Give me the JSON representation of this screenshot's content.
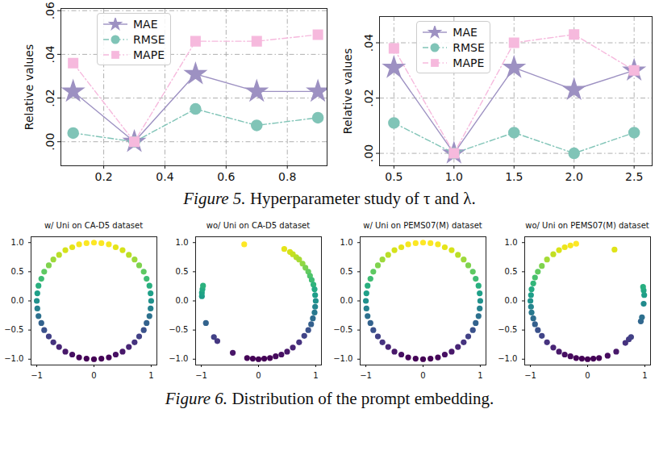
{
  "chart_data": [
    {
      "type": "line",
      "x": [
        0.1,
        0.3,
        0.5,
        0.7,
        0.9
      ],
      "xlim": [
        0.06,
        0.93
      ],
      "xticks": [
        0.2,
        0.4,
        0.6,
        0.8
      ],
      "ylabel": "Relative values",
      "ylim": [
        -0.011,
        0.061
      ],
      "yticks": [
        {
          "value": 0,
          "label": ".00"
        },
        {
          "value": 0.02,
          "label": ".02"
        },
        {
          "value": 0.04,
          "label": ".04"
        },
        {
          "value": 0.06,
          "label": ".06"
        }
      ],
      "grid": true,
      "legend": "upper center",
      "series": [
        {
          "name": "MAE",
          "color": "#9d91c2",
          "marker": "star",
          "line_style": "solid",
          "values": [
            0.023,
            0,
            0.031,
            0.023,
            0.023
          ]
        },
        {
          "name": "RMSE",
          "color": "#80c4b7",
          "marker": "circle",
          "line_style": "dashdot",
          "values": [
            0.004,
            0,
            0.015,
            0.0075,
            0.011
          ]
        },
        {
          "name": "MAPE",
          "color": "#f6b9dd",
          "marker": "square",
          "line_style": "dashdot",
          "values": [
            0.036,
            0,
            0.046,
            0.046,
            0.049
          ]
        }
      ]
    },
    {
      "type": "line",
      "x": [
        0.5,
        1.0,
        1.5,
        2.0,
        2.5
      ],
      "xlim": [
        0.38,
        2.65
      ],
      "xticks": [
        0.5,
        {
          "value": 1,
          "label": "1.0"
        },
        1.5,
        {
          "value": 2,
          "label": "2.0"
        },
        2.5
      ],
      "ylabel": "Relative values",
      "ylim": [
        -0.0045,
        0.0495
      ],
      "yticks": [
        {
          "value": 0,
          "label": ".00"
        },
        {
          "value": 0.02,
          "label": ".02"
        },
        {
          "value": 0.04,
          "label": ".04"
        }
      ],
      "grid": true,
      "legend": "upper center",
      "series": [
        {
          "name": "MAE",
          "color": "#9d91c2",
          "marker": "star",
          "line_style": "solid",
          "values": [
            0.031,
            0,
            0.031,
            0.023,
            0.03
          ]
        },
        {
          "name": "RMSE",
          "color": "#80c4b7",
          "marker": "circle",
          "line_style": "dashdot",
          "values": [
            0.011,
            0,
            0.0075,
            0,
            0.0075
          ]
        },
        {
          "name": "MAPE",
          "color": "#f6b9dd",
          "marker": "square",
          "line_style": "dashdot",
          "values": [
            0.038,
            0,
            0.04,
            0.043,
            0.03
          ]
        }
      ]
    },
    {
      "type": "scatter",
      "title": "w/ Uni on CA-D5 dataset",
      "xlim": [
        -1.1,
        1.1
      ],
      "xticks": [
        -1,
        0,
        1
      ],
      "ylim": [
        -1.1,
        1.1
      ],
      "yticks": [
        {
          "value": -1,
          "label": "−1.0"
        },
        {
          "value": -0.5,
          "label": "−0.5"
        },
        {
          "value": 0,
          "label": "0.0"
        },
        {
          "value": 0.5,
          "label": "0.5"
        },
        {
          "value": 1,
          "label": "1.0"
        }
      ],
      "x": [
        1,
        0.99,
        0.97,
        0.92,
        0.87,
        0.79,
        0.71,
        0.61,
        0.5,
        0.38,
        0.26,
        0.13,
        0,
        -0.13,
        -0.26,
        -0.38,
        -0.5,
        -0.61,
        -0.71,
        -0.79,
        -0.87,
        -0.92,
        -0.97,
        -0.99,
        -1,
        -0.99,
        -0.97,
        -0.92,
        -0.87,
        -0.79,
        -0.71,
        -0.61,
        -0.5,
        -0.38,
        -0.26,
        -0.13,
        0,
        0.13,
        0.26,
        0.38,
        0.5,
        0.61,
        0.71,
        0.79,
        0.87,
        0.92,
        0.97,
        0.99
      ],
      "y": [
        0,
        0.13,
        0.26,
        0.38,
        0.5,
        0.61,
        0.71,
        0.79,
        0.87,
        0.92,
        0.97,
        0.99,
        1,
        0.99,
        0.97,
        0.92,
        0.87,
        0.79,
        0.71,
        0.61,
        0.5,
        0.38,
        0.26,
        0.13,
        0,
        -0.13,
        -0.26,
        -0.38,
        -0.5,
        -0.61,
        -0.71,
        -0.79,
        -0.87,
        -0.92,
        -0.97,
        -0.99,
        -1,
        -0.99,
        -0.97,
        -0.92,
        -0.87,
        -0.79,
        -0.71,
        -0.61,
        -0.5,
        -0.38,
        -0.26,
        -0.13
      ]
    },
    {
      "type": "scatter",
      "title": "wo/ Uni on CA-D5 dataset",
      "xlim": [
        -1.1,
        1.1
      ],
      "xticks": [
        -1,
        0,
        1
      ],
      "ylim": [
        -1.1,
        1.1
      ],
      "yticks": [
        {
          "value": -1,
          "label": "−1.0"
        },
        {
          "value": -0.5,
          "label": "−0.5"
        },
        {
          "value": 0,
          "label": "0.0"
        },
        {
          "value": 0.5,
          "label": "0.5"
        },
        {
          "value": 1,
          "label": "1.0"
        }
      ],
      "x": [
        -0.25,
        0.45,
        0.55,
        0.6,
        0.66,
        0.71,
        0.77,
        0.82,
        0.87,
        0.9,
        0.93,
        0.96,
        0.98,
        0.99,
        1,
        0.99,
        0.98,
        0.95,
        0.92,
        0.87,
        0.8,
        0.71,
        0.6,
        0.5,
        0.4,
        0.3,
        0.2,
        0.1,
        0,
        -0.1,
        -0.2,
        -0.45,
        -0.72,
        -0.78,
        -0.92,
        -0.99,
        -0.99,
        -0.98,
        -0.97
      ],
      "y": [
        0.97,
        0.89,
        0.84,
        0.8,
        0.75,
        0.71,
        0.64,
        0.57,
        0.5,
        0.43,
        0.36,
        0.28,
        0.2,
        0.1,
        0,
        -0.1,
        -0.2,
        -0.3,
        -0.4,
        -0.5,
        -0.6,
        -0.71,
        -0.8,
        -0.87,
        -0.92,
        -0.95,
        -0.98,
        -0.99,
        -1,
        -0.99,
        -0.98,
        -0.89,
        -0.69,
        -0.62,
        -0.38,
        0.08,
        0.14,
        0.2,
        0.26
      ]
    },
    {
      "type": "scatter",
      "title": "w/ Uni on PEMS07(M) dataset",
      "xlim": [
        -1.1,
        1.1
      ],
      "xticks": [
        -1,
        0,
        1
      ],
      "ylim": [
        -1.1,
        1.1
      ],
      "yticks": [
        {
          "value": -1,
          "label": "−1.0"
        },
        {
          "value": -0.5,
          "label": "−0.5"
        },
        {
          "value": 0,
          "label": "0.0"
        },
        {
          "value": 0.5,
          "label": "0.5"
        },
        {
          "value": 1,
          "label": "1.0"
        }
      ],
      "x": [
        1,
        0.99,
        0.97,
        0.92,
        0.87,
        0.79,
        0.71,
        0.61,
        0.5,
        0.38,
        0.26,
        0.13,
        0,
        -0.13,
        -0.26,
        -0.38,
        -0.5,
        -0.61,
        -0.71,
        -0.79,
        -0.87,
        -0.92,
        -0.97,
        -0.99,
        -1,
        -0.99,
        -0.97,
        -0.92,
        -0.87,
        -0.79,
        -0.71,
        -0.61,
        -0.5,
        -0.38,
        -0.26,
        -0.13,
        0,
        0.13,
        0.26,
        0.38,
        0.5,
        0.61,
        0.71,
        0.79,
        0.87,
        0.92,
        0.97,
        0.99
      ],
      "y": [
        0,
        0.13,
        0.26,
        0.38,
        0.5,
        0.61,
        0.71,
        0.79,
        0.87,
        0.92,
        0.97,
        0.99,
        1,
        0.99,
        0.97,
        0.92,
        0.87,
        0.79,
        0.71,
        0.61,
        0.5,
        0.38,
        0.26,
        0.13,
        0,
        -0.13,
        -0.26,
        -0.38,
        -0.5,
        -0.61,
        -0.71,
        -0.79,
        -0.87,
        -0.92,
        -0.97,
        -0.99,
        -1,
        -0.99,
        -0.97,
        -0.92,
        -0.87,
        -0.79,
        -0.71,
        -0.61,
        -0.5,
        -0.38,
        -0.26,
        -0.13
      ]
    },
    {
      "type": "scatter",
      "title": "wo/ Uni on PEMS07(M) dataset",
      "xlim": [
        -1.1,
        1.1
      ],
      "xticks": [
        -1,
        0,
        1
      ],
      "ylim": [
        -1.1,
        1.1
      ],
      "yticks": [
        {
          "value": -1,
          "label": "−1.0"
        },
        {
          "value": -0.5,
          "label": "−0.5"
        },
        {
          "value": 0,
          "label": "0.0"
        },
        {
          "value": 0.5,
          "label": "0.5"
        },
        {
          "value": 1,
          "label": "1.0"
        }
      ],
      "x": [
        0.47,
        -0.2,
        -0.3,
        -0.4,
        -0.5,
        -0.6,
        -0.71,
        -0.8,
        -0.87,
        -0.92,
        -0.95,
        -0.98,
        -0.99,
        -1,
        -0.99,
        -0.98,
        -0.95,
        -0.92,
        -0.87,
        -0.8,
        -0.71,
        -0.6,
        -0.5,
        -0.4,
        -0.3,
        -0.2,
        -0.1,
        0,
        0.1,
        0.2,
        0.35,
        0.5,
        0.66,
        0.72,
        0.76,
        0.93,
        0.95,
        0.98,
        0.99,
        0.98,
        0.97
      ],
      "y": [
        0.88,
        0.98,
        0.95,
        0.92,
        0.87,
        0.8,
        0.71,
        0.6,
        0.5,
        0.4,
        0.3,
        0.2,
        0.1,
        0,
        -0.1,
        -0.2,
        -0.3,
        -0.4,
        -0.5,
        -0.6,
        -0.71,
        -0.8,
        -0.87,
        -0.92,
        -0.95,
        -0.98,
        -0.99,
        -1,
        -0.99,
        -0.98,
        -0.94,
        -0.87,
        -0.72,
        -0.66,
        -0.62,
        -0.35,
        -0.28,
        -0.05,
        0.1,
        0.18,
        0.24
      ]
    }
  ],
  "captions": [
    {
      "label": "Figure 5.",
      "text": "Hyperparameter study of τ and λ."
    },
    {
      "label": "Figure 6.",
      "text": "Distribution of the prompt embedding."
    }
  ]
}
